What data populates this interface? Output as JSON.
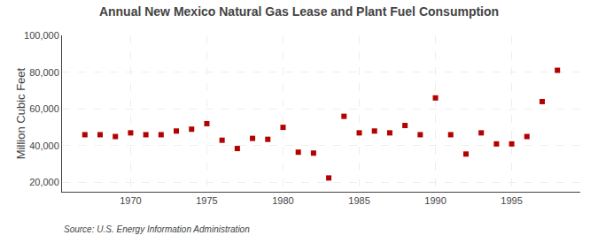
{
  "chart_data": {
    "type": "scatter",
    "title": "Annual New Mexico Natural Gas Lease and Plant Fuel Consumption",
    "ylabel": "Million Cubic Feet",
    "annotations": [
      "Source: U.S. Energy Information Administration"
    ],
    "x": [
      1967,
      1968,
      1969,
      1970,
      1971,
      1972,
      1973,
      1974,
      1975,
      1976,
      1977,
      1978,
      1979,
      1980,
      1981,
      1982,
      1983,
      1984,
      1985,
      1986,
      1987,
      1988,
      1989,
      1990,
      1991,
      1992,
      1993,
      1994,
      1995,
      1996,
      1997,
      1998
    ],
    "values": [
      46000,
      46000,
      45000,
      47000,
      46000,
      46000,
      48000,
      49000,
      52000,
      43000,
      38500,
      44000,
      43500,
      50000,
      36500,
      36000,
      22500,
      56000,
      47000,
      48000,
      47000,
      51000,
      46000,
      66000,
      46000,
      35500,
      47000,
      41000,
      41000,
      45000,
      64000,
      81000
    ],
    "color": "#b30000",
    "marker": "square",
    "xlim": [
      1965.5,
      1999.5
    ],
    "xticks": [
      1970,
      1975,
      1980,
      1985,
      1990,
      1995
    ],
    "ylim": [
      15000,
      100000
    ],
    "yticks": [
      {
        "value": 20000,
        "label": "20,000"
      },
      {
        "value": 40000,
        "label": "40,000"
      },
      {
        "value": 60000,
        "label": "60,000"
      },
      {
        "value": 80000,
        "label": "80,000"
      },
      {
        "value": 100000,
        "label": "100,000"
      }
    ],
    "grid": true
  }
}
